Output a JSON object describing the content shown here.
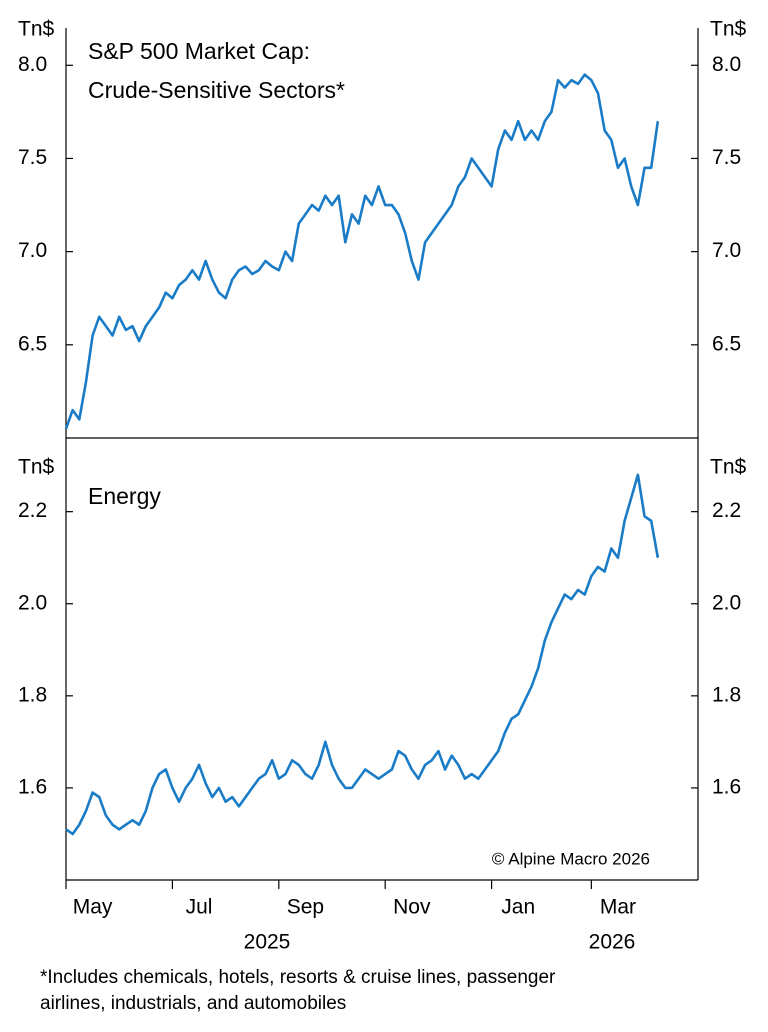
{
  "chart_data": [
    {
      "type": "line",
      "title_lines": [
        "S&P 500 Market Cap:",
        "Crude-Sensitive Sectors*"
      ],
      "y_unit": "Tn$",
      "ylim": [
        6.0,
        8.2
      ],
      "yticks": [
        6.5,
        {
          "value": 7,
          "label": "7.0"
        },
        7.5,
        {
          "value": 8,
          "label": "8.0"
        }
      ],
      "color": "#1a7cc7",
      "values": [
        6.05,
        6.15,
        6.1,
        6.3,
        6.55,
        6.65,
        6.6,
        6.55,
        6.65,
        6.58,
        6.6,
        6.52,
        6.6,
        6.65,
        6.7,
        6.78,
        6.75,
        6.82,
        6.85,
        6.9,
        6.85,
        6.95,
        6.85,
        6.78,
        6.75,
        6.85,
        6.9,
        6.92,
        6.88,
        6.9,
        6.95,
        6.92,
        6.9,
        7.0,
        6.95,
        7.15,
        7.2,
        7.25,
        7.22,
        7.3,
        7.25,
        7.3,
        7.05,
        7.2,
        7.15,
        7.3,
        7.25,
        7.35,
        7.25,
        7.25,
        7.2,
        7.1,
        6.95,
        6.85,
        7.05,
        7.1,
        7.15,
        7.2,
        7.25,
        7.35,
        7.4,
        7.5,
        7.45,
        7.4,
        7.35,
        7.55,
        7.65,
        7.6,
        7.7,
        7.6,
        7.65,
        7.6,
        7.7,
        7.75,
        7.92,
        7.88,
        7.92,
        7.9,
        7.95,
        7.92,
        7.85,
        7.65,
        7.6,
        7.45,
        7.5,
        7.35,
        7.25,
        7.45,
        7.45,
        7.7
      ]
    },
    {
      "type": "line",
      "title_lines": [
        "Energy"
      ],
      "y_unit": "Tn$",
      "ylim": [
        1.4,
        2.36
      ],
      "yticks": [
        1.6,
        1.8,
        {
          "value": 2,
          "label": "2.0"
        },
        2.2
      ],
      "color": "#1a7cc7",
      "annotation": "© Alpine Macro 2026",
      "categories": [
        "May",
        null,
        null,
        null,
        null,
        null,
        null,
        null,
        null,
        null,
        null,
        null,
        null,
        null,
        null,
        null,
        "Jul",
        null,
        null,
        null,
        null,
        null,
        null,
        null,
        null,
        null,
        null,
        null,
        null,
        null,
        null,
        null,
        "Sep",
        null,
        null,
        null,
        null,
        null,
        null,
        null,
        null,
        null,
        null,
        null,
        null,
        null,
        null,
        null,
        "Nov",
        null,
        null,
        null,
        null,
        null,
        null,
        null,
        null,
        null,
        null,
        null,
        null,
        null,
        null,
        null,
        "Jan",
        null,
        null,
        null,
        null,
        null,
        null,
        null,
        null,
        null,
        null,
        null,
        null,
        null,
        null,
        "Mar",
        null,
        null,
        null,
        null,
        null,
        null,
        null,
        null,
        null,
        null
      ],
      "year_labels": [
        "2025",
        "2026"
      ],
      "values": [
        1.51,
        1.5,
        1.52,
        1.55,
        1.59,
        1.58,
        1.54,
        1.52,
        1.51,
        1.52,
        1.53,
        1.52,
        1.55,
        1.6,
        1.63,
        1.64,
        1.6,
        1.57,
        1.6,
        1.62,
        1.65,
        1.61,
        1.58,
        1.6,
        1.57,
        1.58,
        1.56,
        1.58,
        1.6,
        1.62,
        1.63,
        1.66,
        1.62,
        1.63,
        1.66,
        1.65,
        1.63,
        1.62,
        1.65,
        1.7,
        1.65,
        1.62,
        1.6,
        1.6,
        1.62,
        1.64,
        1.63,
        1.62,
        1.63,
        1.64,
        1.68,
        1.67,
        1.64,
        1.62,
        1.65,
        1.66,
        1.68,
        1.64,
        1.67,
        1.65,
        1.62,
        1.63,
        1.62,
        1.64,
        1.66,
        1.68,
        1.72,
        1.75,
        1.76,
        1.79,
        1.82,
        1.86,
        1.92,
        1.96,
        1.99,
        2.02,
        2.01,
        2.03,
        2.02,
        2.06,
        2.08,
        2.07,
        2.12,
        2.1,
        2.18,
        2.23,
        2.28,
        2.19,
        2.18,
        2.1
      ]
    }
  ],
  "footnote": [
    "*Includes chemicals, hotels, resorts & cruise lines, passenger",
    "airlines, industrials, and automobiles"
  ]
}
